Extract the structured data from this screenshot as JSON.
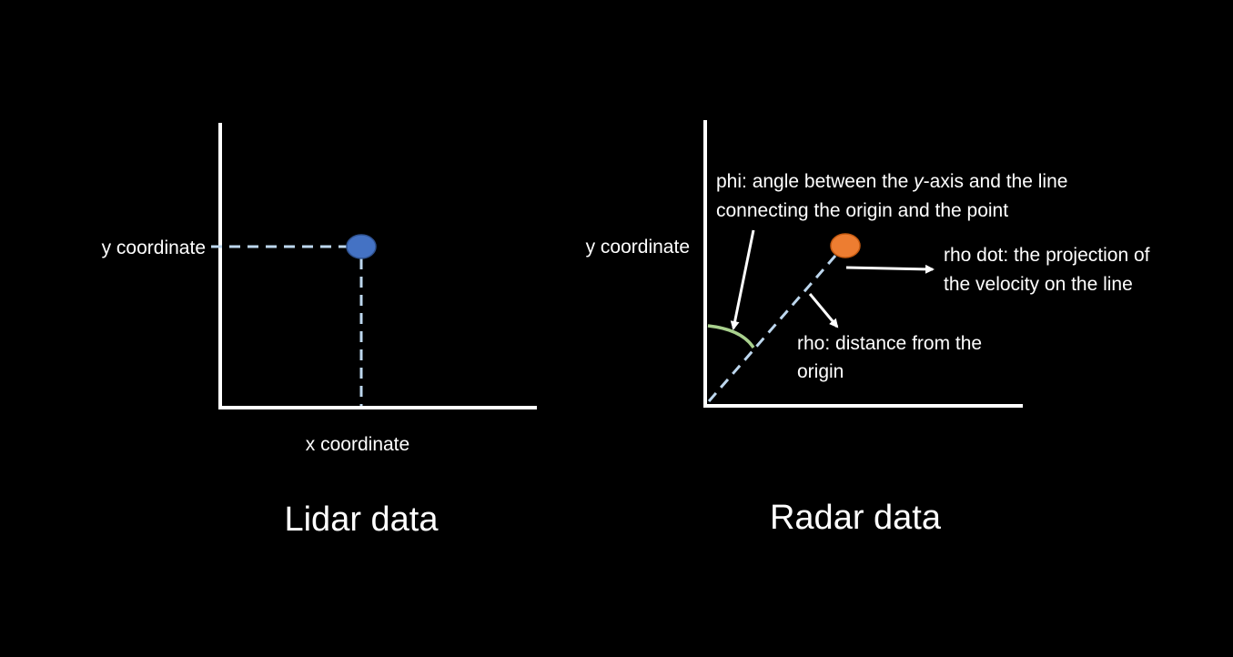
{
  "lidar": {
    "y_label": "y coordinate",
    "x_label": "x coordinate",
    "title": "Lidar data",
    "point_color": "#4472C4"
  },
  "radar": {
    "y_label": "y coordinate",
    "title": "Radar data",
    "point_color": "#ED7D31",
    "arc_color": "#A9D18E",
    "phi": {
      "line1_prefix": "phi: angle between the ",
      "line1_italic": "y",
      "line1_suffix": "-axis and the line",
      "line2": "connecting the origin and the point"
    },
    "rho_dot": {
      "line1": "rho dot: the projection of",
      "line2": "the velocity on the line"
    },
    "rho": {
      "line1": "rho: distance from the",
      "line2": "origin"
    }
  },
  "colors": {
    "background": "#000000",
    "axis": "#FFFFFF",
    "dashed": "#BDD7EE",
    "text": "#FFFFFF"
  }
}
